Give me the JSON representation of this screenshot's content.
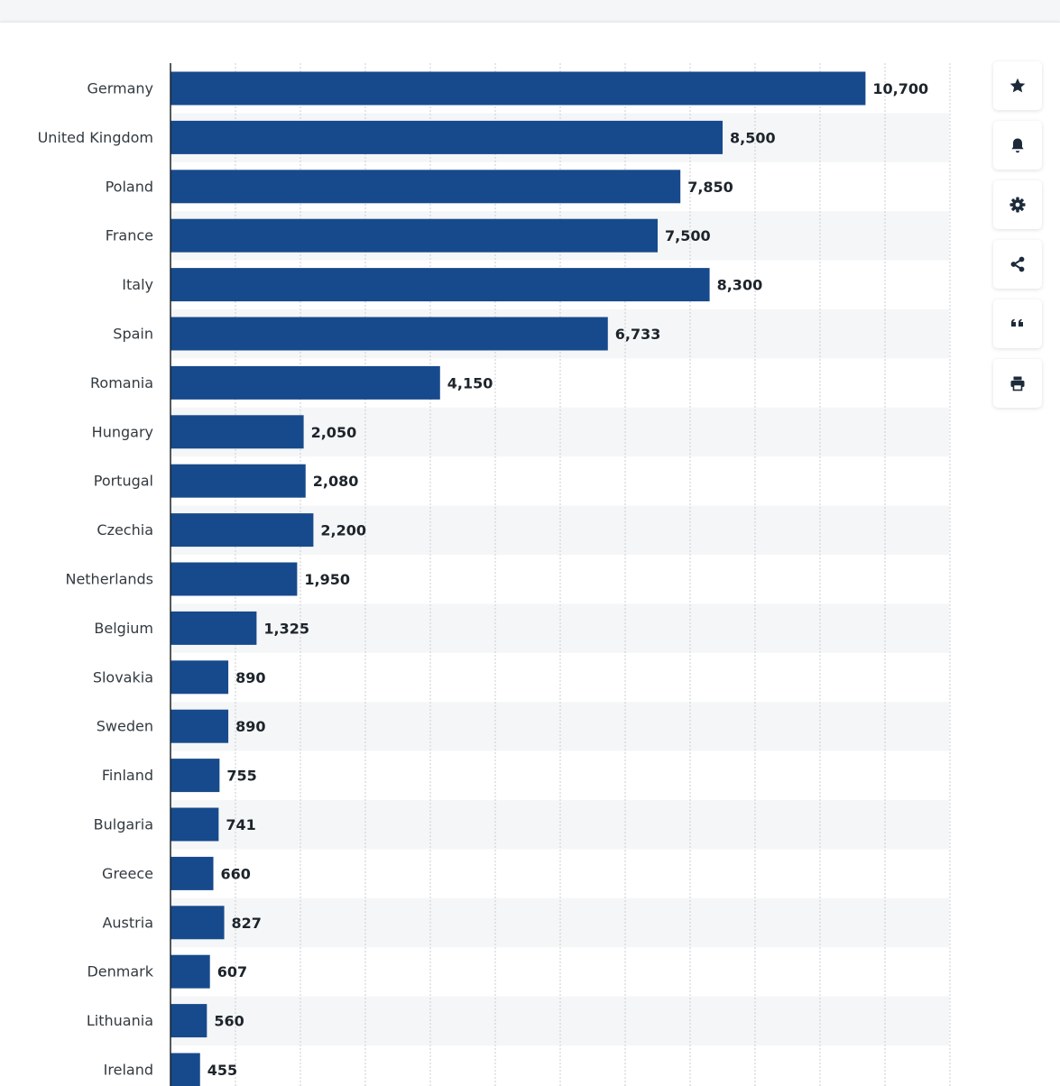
{
  "chart_data": {
    "type": "bar",
    "orientation": "horizontal",
    "categories": [
      "Germany",
      "United Kingdom",
      "Poland",
      "France",
      "Italy",
      "Spain",
      "Romania",
      "Hungary",
      "Portugal",
      "Czechia",
      "Netherlands",
      "Belgium",
      "Slovakia",
      "Sweden",
      "Finland",
      "Bulgaria",
      "Greece",
      "Austria",
      "Denmark",
      "Lithuania",
      "Ireland"
    ],
    "values": [
      10700,
      8500,
      7850,
      7500,
      8300,
      6733,
      4150,
      2050,
      2080,
      2200,
      1950,
      1325,
      890,
      890,
      755,
      741,
      660,
      827,
      607,
      560,
      455
    ],
    "value_labels": [
      "10,700",
      "8,500",
      "7,850",
      "7,500",
      "8,300",
      "6,733",
      "4,150",
      "2,050",
      "2,080",
      "2,200",
      "1,950",
      "1,325",
      "890",
      "890",
      "755",
      "741",
      "660",
      "827",
      "607",
      "560",
      "455"
    ],
    "xlim": [
      0,
      12000
    ],
    "x_gridlines": [
      1000,
      2000,
      3000,
      4000,
      5000,
      6000,
      7000,
      8000,
      9000,
      10000,
      11000,
      12000
    ],
    "grid": true,
    "grid_style": "dotted vertical",
    "row_banding": true,
    "bar_color": "#174a8c",
    "band_color": "#f5f6f7",
    "title": "",
    "xlabel": "",
    "ylabel": ""
  },
  "toolbar": {
    "buttons": [
      {
        "name": "favorite-button",
        "icon": "star-icon"
      },
      {
        "name": "notification-button",
        "icon": "bell-icon"
      },
      {
        "name": "settings-button",
        "icon": "gear-icon"
      },
      {
        "name": "share-button",
        "icon": "share-icon"
      },
      {
        "name": "citation-button",
        "icon": "quote-icon"
      },
      {
        "name": "print-button",
        "icon": "printer-icon"
      }
    ],
    "icon_color": "#1d2a3a"
  }
}
